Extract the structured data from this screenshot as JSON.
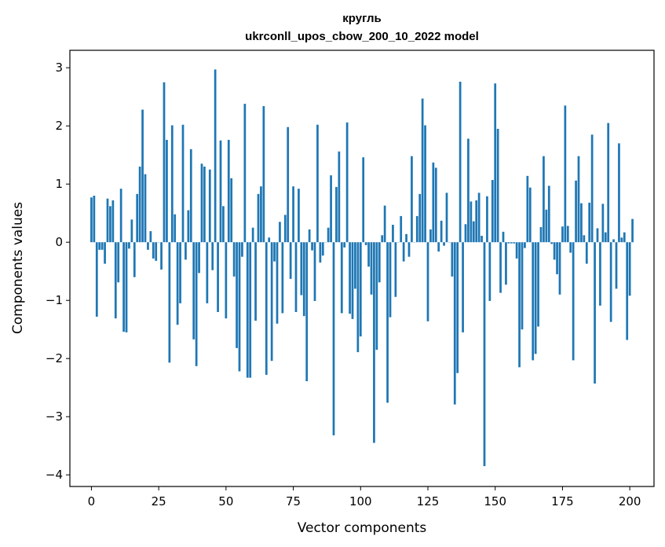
{
  "chart_data": {
    "type": "bar",
    "title": "кругль",
    "subtitle": "ukrconll_upos_cbow_200_10_2022 model",
    "xlabel": "Vector components",
    "ylabel": "Components values",
    "xlim": [
      -8,
      209
    ],
    "ylim": [
      -4.2,
      3.3
    ],
    "xticks": [
      0,
      25,
      50,
      75,
      100,
      125,
      150,
      175,
      200
    ],
    "yticks": [
      -4,
      -3,
      -2,
      -1,
      0,
      1,
      2,
      3
    ],
    "bar_color": "#1f77b4",
    "grid": false,
    "values": [
      0.77,
      0.8,
      -1.28,
      -0.13,
      -0.13,
      -0.37,
      0.75,
      0.62,
      0.72,
      -1.31,
      -0.69,
      0.92,
      -1.54,
      -1.55,
      -0.11,
      0.39,
      -0.6,
      0.83,
      1.3,
      2.28,
      1.17,
      -0.13,
      0.19,
      -0.28,
      -0.32,
      0.0,
      -0.47,
      2.75,
      1.76,
      -2.07,
      2.01,
      0.48,
      -1.42,
      -1.05,
      2.02,
      -0.3,
      0.55,
      1.6,
      -1.67,
      -2.13,
      -0.53,
      1.35,
      1.3,
      -1.05,
      1.25,
      -0.48,
      2.97,
      -1.2,
      1.75,
      0.62,
      -1.31,
      1.76,
      1.1,
      -0.59,
      -1.82,
      -2.22,
      -0.25,
      2.38,
      -2.33,
      -2.33,
      0.25,
      -1.35,
      0.83,
      0.96,
      2.34,
      -2.28,
      0.08,
      -2.04,
      -0.33,
      -1.4,
      0.35,
      -1.22,
      0.47,
      1.98,
      -0.63,
      0.96,
      -1.2,
      0.92,
      -0.91,
      -1.27,
      -2.39,
      0.22,
      -0.14,
      -1.01,
      2.02,
      -0.35,
      -0.23,
      0.0,
      0.25,
      1.15,
      -3.32,
      0.95,
      1.56,
      -1.22,
      -0.09,
      2.06,
      -1.23,
      -1.32,
      -0.8,
      -1.89,
      -1.62,
      1.46,
      -0.05,
      -0.42,
      -0.9,
      -3.45,
      -1.85,
      -0.69,
      0.12,
      0.63,
      -2.76,
      -1.29,
      0.3,
      -0.94,
      0.0,
      0.45,
      -0.33,
      0.14,
      -0.25,
      1.48,
      0.0,
      0.45,
      0.83,
      2.47,
      2.01,
      -1.36,
      0.22,
      1.37,
      1.28,
      -0.16,
      0.37,
      -0.06,
      0.85,
      0.0,
      -0.59,
      -2.79,
      -2.25,
      2.76,
      -1.55,
      0.31,
      1.78,
      0.7,
      0.36,
      0.72,
      0.85,
      0.11,
      -3.85,
      0.79,
      -1.01,
      1.07,
      2.73,
      1.95,
      -0.87,
      0.18,
      -0.73,
      -0.02,
      -0.02,
      -0.02,
      -0.28,
      -2.15,
      -1.5,
      -0.1,
      1.14,
      0.94,
      -2.03,
      -1.92,
      -1.45,
      0.26,
      1.48,
      0.56,
      0.97,
      -0.03,
      -0.3,
      -0.55,
      -0.9,
      0.27,
      2.35,
      0.28,
      -0.18,
      -2.03,
      1.06,
      1.48,
      0.67,
      0.12,
      -0.37,
      0.68,
      1.85,
      -2.43,
      0.24,
      -1.09,
      0.66,
      0.17,
      2.05,
      -1.37,
      0.05,
      -0.8,
      1.7,
      0.08,
      0.17,
      -1.68,
      -0.92,
      0.4
    ]
  }
}
